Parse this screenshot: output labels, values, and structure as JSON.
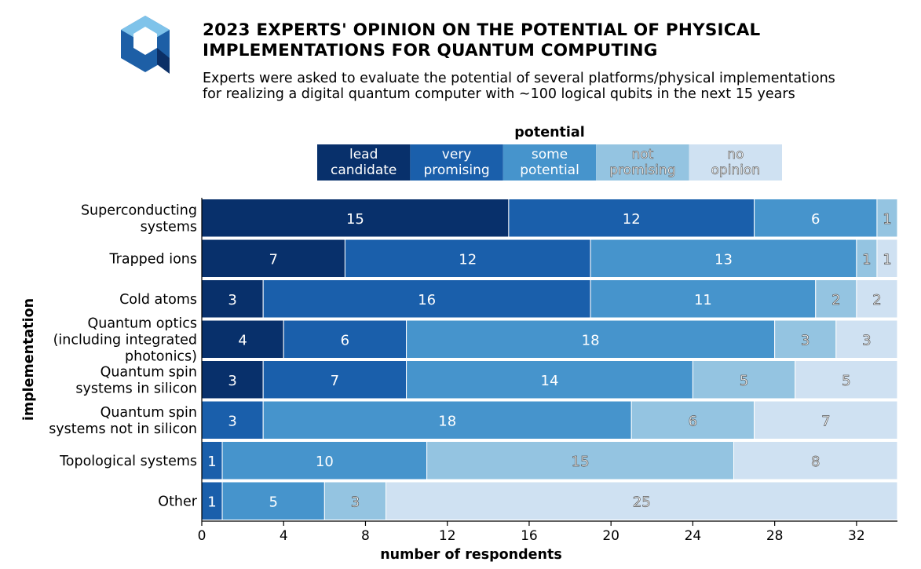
{
  "header": {
    "title_line1": "2023 EXPERTS' OPINION ON THE POTENTIAL OF PHYSICAL",
    "title_line2": "IMPLEMENTATIONS FOR QUANTUM COMPUTING",
    "subtitle_line1": "Experts were asked to evaluate the potential of several platforms/physical implementations",
    "subtitle_line2": "for realizing a digital quantum computer with ~100 logical qubits in the next 15 years"
  },
  "colors": {
    "lead": "#08306b",
    "very": "#1a5fab",
    "some": "#4694cc",
    "not": "#94c4e1",
    "none": "#cfe1f2"
  },
  "chart_data": {
    "type": "bar",
    "orientation": "horizontal",
    "stacked": true,
    "legend_title": "potential",
    "legend_position": "top",
    "xlabel": "number of respondents",
    "ylabel": "implementation",
    "xlim": [
      0,
      34
    ],
    "xticks": [
      0,
      4,
      8,
      12,
      16,
      20,
      24,
      28,
      32
    ],
    "categories": [
      [
        "Superconducting",
        "systems"
      ],
      [
        "Trapped ions"
      ],
      [
        "Cold atoms"
      ],
      [
        "Quantum optics",
        "(including integrated",
        "photonics)"
      ],
      [
        "Quantum spin",
        "systems in silicon"
      ],
      [
        "Quantum spin",
        "systems not in silicon"
      ],
      [
        "Topological systems"
      ],
      [
        "Other"
      ]
    ],
    "series": [
      {
        "key": "lead",
        "name": [
          "lead",
          "candidate"
        ],
        "values": [
          15,
          7,
          3,
          4,
          3,
          0,
          0,
          0
        ]
      },
      {
        "key": "very",
        "name": [
          "very",
          "promising"
        ],
        "values": [
          12,
          12,
          16,
          6,
          7,
          3,
          1,
          1
        ]
      },
      {
        "key": "some",
        "name": [
          "some",
          "potential"
        ],
        "values": [
          6,
          13,
          11,
          18,
          14,
          18,
          10,
          5
        ]
      },
      {
        "key": "not",
        "name": [
          "not",
          "promising"
        ],
        "values": [
          1,
          1,
          2,
          3,
          5,
          6,
          15,
          3
        ]
      },
      {
        "key": "none",
        "name": [
          "no",
          "opinion"
        ],
        "values": [
          0,
          1,
          2,
          3,
          5,
          7,
          8,
          25
        ]
      }
    ]
  }
}
